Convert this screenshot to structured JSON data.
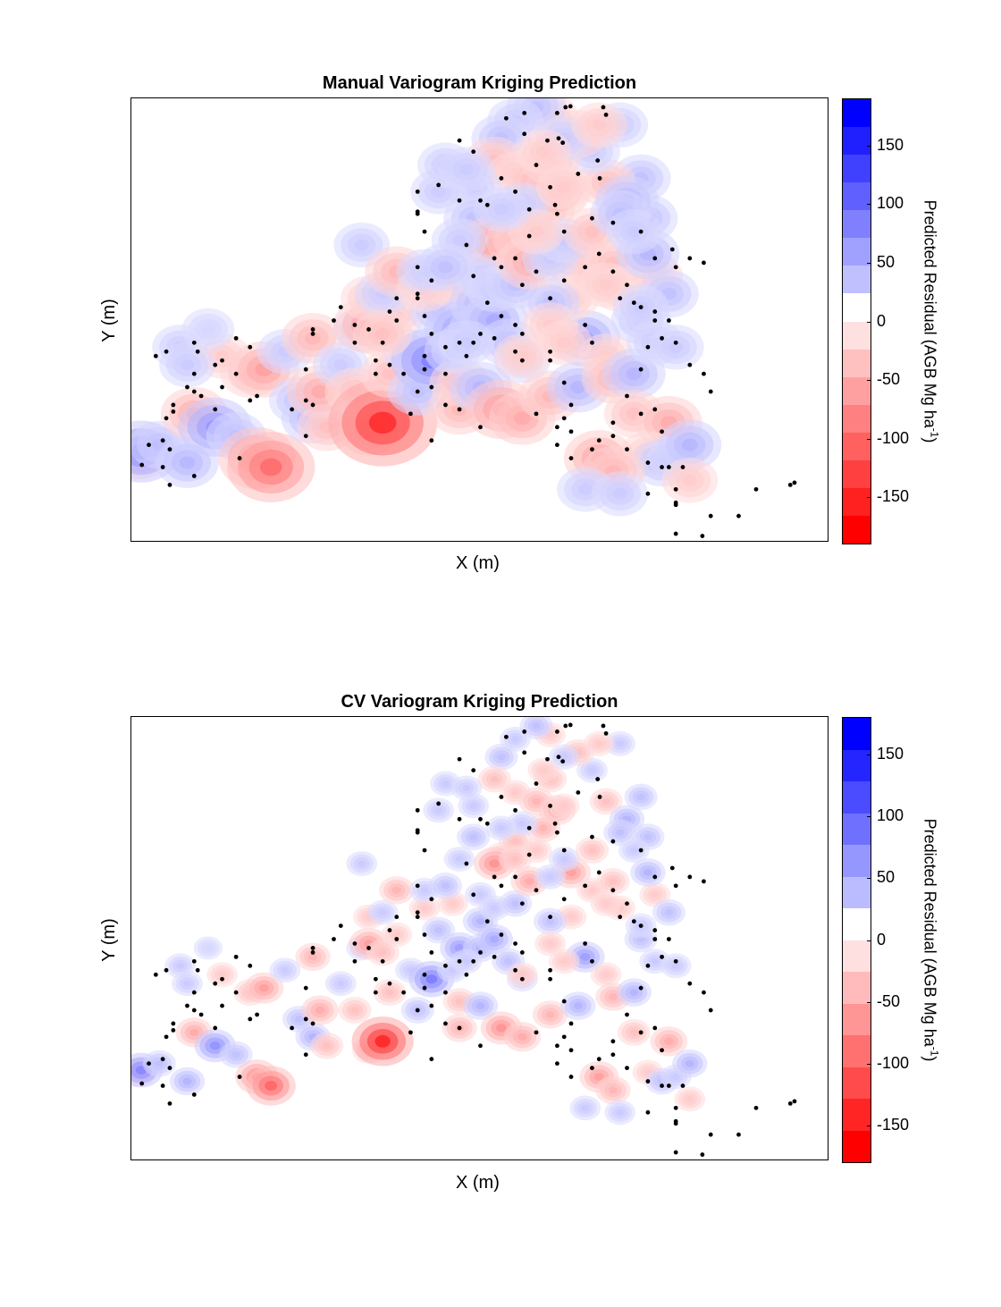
{
  "chart_data": [
    {
      "type": "heatmap",
      "title": "Manual Variogram Kriging Prediction",
      "xlabel": "X (m)",
      "ylabel": "Y (m)",
      "colorbar": {
        "label_main": "Predicted Residual (AGB Mg ha",
        "label_sup": "-1",
        "label_end": ")",
        "range": [
          -190,
          190
        ],
        "ticks": [
          150,
          100,
          50,
          0,
          -50,
          -100,
          -150
        ],
        "tick_labels": [
          "150",
          "100",
          "50",
          "0",
          "-50",
          "-100",
          "-150"
        ],
        "levels": 16,
        "positive_color": "#0000ff",
        "negative_color": "#ff0000",
        "zero_color": "#ffffff"
      },
      "blob_scale": 1.0
    },
    {
      "type": "heatmap",
      "title": "CV Variogram Kriging Prediction",
      "xlabel": "X (m)",
      "ylabel": "Y (m)",
      "colorbar": {
        "label_main": "Predicted Residual (AGB Mg ha",
        "label_sup": "-1",
        "label_end": ")",
        "range": [
          -180,
          180
        ],
        "ticks": [
          150,
          100,
          50,
          0,
          -50,
          -100,
          -150
        ],
        "tick_labels": [
          "150",
          "100",
          "50",
          "0",
          "-50",
          "-100",
          "-150"
        ],
        "levels": 14,
        "positive_color": "#0000ff",
        "negative_color": "#ff0000",
        "zero_color": "#ffffff"
      },
      "blob_scale": 0.55
    }
  ],
  "field_points": [
    [
      0.01,
      0.8,
      -40
    ],
    [
      0.014,
      0.795,
      80
    ],
    [
      0.04,
      0.78,
      30
    ],
    [
      0.08,
      0.82,
      40
    ],
    [
      0.09,
      0.71,
      -50
    ],
    [
      0.07,
      0.56,
      20
    ],
    [
      0.12,
      0.74,
      70
    ],
    [
      0.15,
      0.76,
      30
    ],
    [
      0.18,
      0.81,
      -80
    ],
    [
      0.2,
      0.83,
      -110
    ],
    [
      0.17,
      0.62,
      -30
    ],
    [
      0.13,
      0.58,
      -20
    ],
    [
      0.19,
      0.61,
      -60
    ],
    [
      0.22,
      0.57,
      20
    ],
    [
      0.24,
      0.68,
      30
    ],
    [
      0.26,
      0.72,
      40
    ],
    [
      0.28,
      0.74,
      -30
    ],
    [
      0.26,
      0.54,
      -40
    ],
    [
      0.27,
      0.66,
      -50
    ],
    [
      0.3,
      0.6,
      20
    ],
    [
      0.32,
      0.66,
      -30
    ],
    [
      0.33,
      0.52,
      20
    ],
    [
      0.34,
      0.75,
      -30
    ],
    [
      0.36,
      0.73,
      -170
    ],
    [
      0.34,
      0.51,
      -60
    ],
    [
      0.37,
      0.62,
      -30
    ],
    [
      0.34,
      0.45,
      -20
    ],
    [
      0.38,
      0.49,
      -20
    ],
    [
      0.4,
      0.57,
      20
    ],
    [
      0.41,
      0.66,
      30
    ],
    [
      0.43,
      0.59,
      90
    ],
    [
      0.44,
      0.48,
      30
    ],
    [
      0.46,
      0.42,
      -20
    ],
    [
      0.47,
      0.52,
      60
    ],
    [
      0.5,
      0.46,
      40
    ],
    [
      0.5,
      0.52,
      40
    ],
    [
      0.52,
      0.5,
      50
    ],
    [
      0.54,
      0.55,
      30
    ],
    [
      0.56,
      0.59,
      20
    ],
    [
      0.47,
      0.7,
      -40
    ],
    [
      0.47,
      0.64,
      -30
    ],
    [
      0.5,
      0.65,
      40
    ],
    [
      0.53,
      0.7,
      -70
    ],
    [
      0.56,
      0.72,
      -50
    ],
    [
      0.56,
      0.58,
      -20
    ],
    [
      0.6,
      0.67,
      -40
    ],
    [
      0.64,
      0.65,
      40
    ],
    [
      0.65,
      0.54,
      60
    ],
    [
      0.68,
      0.58,
      -20
    ],
    [
      0.69,
      0.63,
      -40
    ],
    [
      0.72,
      0.62,
      40
    ],
    [
      0.72,
      0.71,
      -30
    ],
    [
      0.77,
      0.73,
      -50
    ],
    [
      0.74,
      0.8,
      -20
    ],
    [
      0.76,
      0.82,
      30
    ],
    [
      0.78,
      0.81,
      20
    ],
    [
      0.8,
      0.78,
      40
    ],
    [
      0.8,
      0.86,
      -20
    ],
    [
      0.67,
      0.81,
      -60
    ],
    [
      0.69,
      0.84,
      -40
    ],
    [
      0.65,
      0.88,
      20
    ],
    [
      0.7,
      0.89,
      20
    ],
    [
      0.63,
      0.35,
      -60
    ],
    [
      0.63,
      0.45,
      -20
    ],
    [
      0.6,
      0.46,
      30
    ],
    [
      0.66,
      0.39,
      -20
    ],
    [
      0.69,
      0.37,
      -30
    ],
    [
      0.73,
      0.5,
      30
    ],
    [
      0.75,
      0.55,
      20
    ],
    [
      0.7,
      0.43,
      -20
    ],
    [
      0.75,
      0.4,
      -20
    ],
    [
      0.78,
      0.56,
      20
    ],
    [
      0.77,
      0.44,
      30
    ],
    [
      0.74,
      0.35,
      40
    ],
    [
      0.74,
      0.27,
      30
    ],
    [
      0.73,
      0.18,
      30
    ],
    [
      0.68,
      0.19,
      -30
    ],
    [
      0.71,
      0.23,
      40
    ],
    [
      0.66,
      0.12,
      20
    ],
    [
      0.64,
      0.08,
      -30
    ],
    [
      0.6,
      0.04,
      -20
    ],
    [
      0.58,
      0.02,
      30
    ],
    [
      0.55,
      0.05,
      20
    ],
    [
      0.53,
      0.09,
      30
    ],
    [
      0.52,
      0.14,
      -30
    ],
    [
      0.55,
      0.17,
      -20
    ],
    [
      0.58,
      0.19,
      -40
    ],
    [
      0.59,
      0.25,
      -40
    ],
    [
      0.61,
      0.21,
      -50
    ],
    [
      0.6,
      0.14,
      -30
    ],
    [
      0.62,
      0.09,
      20
    ],
    [
      0.53,
      0.31,
      -20
    ],
    [
      0.55,
      0.28,
      -30
    ],
    [
      0.49,
      0.2,
      20
    ],
    [
      0.49,
      0.27,
      30
    ],
    [
      0.52,
      0.33,
      -70
    ],
    [
      0.55,
      0.32,
      -30
    ],
    [
      0.47,
      0.32,
      20
    ],
    [
      0.44,
      0.21,
      20
    ],
    [
      0.45,
      0.15,
      20
    ],
    [
      0.48,
      0.16,
      20
    ],
    [
      0.5,
      0.4,
      20
    ],
    [
      0.52,
      0.43,
      20
    ],
    [
      0.55,
      0.42,
      30
    ],
    [
      0.57,
      0.37,
      -50
    ],
    [
      0.6,
      0.36,
      20
    ],
    [
      0.62,
      0.32,
      20
    ],
    [
      0.66,
      0.3,
      -30
    ],
    [
      0.7,
      0.26,
      30
    ],
    [
      0.72,
      0.3,
      20
    ],
    [
      0.7,
      0.06,
      20
    ],
    [
      0.67,
      0.06,
      -20
    ],
    [
      0.33,
      0.33,
      20
    ],
    [
      0.36,
      0.44,
      20
    ],
    [
      0.38,
      0.39,
      -40
    ],
    [
      0.42,
      0.43,
      -20
    ],
    [
      0.42,
      0.39,
      20
    ],
    [
      0.45,
      0.38,
      30
    ],
    [
      0.36,
      0.53,
      -30
    ],
    [
      0.6,
      0.51,
      -20
    ],
    [
      0.62,
      0.55,
      -20
    ],
    [
      0.68,
      0.42,
      -20
    ],
    [
      0.73,
      0.47,
      20
    ],
    [
      0.08,
      0.6,
      20
    ],
    [
      0.11,
      0.52,
      10
    ],
    [
      0.56,
      0.24,
      20
    ],
    [
      0.58,
      0.3,
      -20
    ],
    [
      0.46,
      0.57,
      20
    ],
    [
      0.48,
      0.55,
      20
    ],
    [
      0.62,
      0.2,
      -20
    ],
    [
      0.59,
      0.12,
      -20
    ],
    [
      0.53,
      0.25,
      20
    ]
  ],
  "site_points": [
    [
      0.537,
      0.045
    ],
    [
      0.563,
      0.033
    ],
    [
      0.563,
      0.08
    ],
    [
      0.61,
      0.033
    ],
    [
      0.622,
      0.02
    ],
    [
      0.629,
      0.018
    ],
    [
      0.676,
      0.02
    ],
    [
      0.68,
      0.037
    ],
    [
      0.47,
      0.095
    ],
    [
      0.49,
      0.12
    ],
    [
      0.596,
      0.095
    ],
    [
      0.618,
      0.1
    ],
    [
      0.612,
      0.09
    ],
    [
      0.668,
      0.14
    ],
    [
      0.671,
      0.18
    ],
    [
      0.58,
      0.15
    ],
    [
      0.607,
      0.24
    ],
    [
      0.64,
      0.17
    ],
    [
      0.6,
      0.2
    ],
    [
      0.41,
      0.21
    ],
    [
      0.44,
      0.195
    ],
    [
      0.47,
      0.23
    ],
    [
      0.5,
      0.23
    ],
    [
      0.51,
      0.24
    ],
    [
      0.53,
      0.18
    ],
    [
      0.55,
      0.21
    ],
    [
      0.57,
      0.25
    ],
    [
      0.61,
      0.26
    ],
    [
      0.62,
      0.3
    ],
    [
      0.66,
      0.27
    ],
    [
      0.69,
      0.28
    ],
    [
      0.67,
      0.35
    ],
    [
      0.73,
      0.3
    ],
    [
      0.75,
      0.36
    ],
    [
      0.775,
      0.34
    ],
    [
      0.8,
      0.36
    ],
    [
      0.82,
      0.37
    ],
    [
      0.78,
      0.38
    ],
    [
      0.7,
      0.45
    ],
    [
      0.72,
      0.46
    ],
    [
      0.75,
      0.48
    ],
    [
      0.77,
      0.5
    ],
    [
      0.76,
      0.54
    ],
    [
      0.74,
      0.56
    ],
    [
      0.66,
      0.55
    ],
    [
      0.65,
      0.51
    ],
    [
      0.41,
      0.255
    ],
    [
      0.41,
      0.26
    ],
    [
      0.42,
      0.3
    ],
    [
      0.48,
      0.33
    ],
    [
      0.52,
      0.36
    ],
    [
      0.53,
      0.38
    ],
    [
      0.55,
      0.36
    ],
    [
      0.58,
      0.39
    ],
    [
      0.6,
      0.45
    ],
    [
      0.62,
      0.41
    ],
    [
      0.65,
      0.38
    ],
    [
      0.69,
      0.39
    ],
    [
      0.71,
      0.42
    ],
    [
      0.73,
      0.47
    ],
    [
      0.75,
      0.5
    ],
    [
      0.78,
      0.55
    ],
    [
      0.8,
      0.6
    ],
    [
      0.82,
      0.62
    ],
    [
      0.83,
      0.66
    ],
    [
      0.73,
      0.61
    ],
    [
      0.71,
      0.67
    ],
    [
      0.69,
      0.73
    ],
    [
      0.63,
      0.69
    ],
    [
      0.62,
      0.64
    ],
    [
      0.6,
      0.57
    ],
    [
      0.61,
      0.74
    ],
    [
      0.6,
      0.59
    ],
    [
      0.56,
      0.59
    ],
    [
      0.55,
      0.57
    ],
    [
      0.56,
      0.53
    ],
    [
      0.55,
      0.51
    ],
    [
      0.53,
      0.49
    ],
    [
      0.51,
      0.46
    ],
    [
      0.5,
      0.53
    ],
    [
      0.49,
      0.55
    ],
    [
      0.48,
      0.58
    ],
    [
      0.47,
      0.55
    ],
    [
      0.45,
      0.56
    ],
    [
      0.43,
      0.53
    ],
    [
      0.42,
      0.58
    ],
    [
      0.41,
      0.66
    ],
    [
      0.45,
      0.69
    ],
    [
      0.45,
      0.62
    ],
    [
      0.42,
      0.49
    ],
    [
      0.41,
      0.45
    ],
    [
      0.41,
      0.44
    ],
    [
      0.38,
      0.45
    ],
    [
      0.41,
      0.38
    ],
    [
      0.43,
      0.41
    ],
    [
      0.42,
      0.61
    ],
    [
      0.43,
      0.65
    ],
    [
      0.37,
      0.48
    ],
    [
      0.38,
      0.5
    ],
    [
      0.36,
      0.55
    ],
    [
      0.37,
      0.6
    ],
    [
      0.39,
      0.62
    ],
    [
      0.35,
      0.59
    ],
    [
      0.34,
      0.52
    ],
    [
      0.32,
      0.51
    ],
    [
      0.3,
      0.47
    ],
    [
      0.29,
      0.5
    ],
    [
      0.26,
      0.53
    ],
    [
      0.26,
      0.69
    ],
    [
      0.25,
      0.61
    ],
    [
      0.25,
      0.68
    ],
    [
      0.18,
      0.67
    ],
    [
      0.15,
      0.62
    ],
    [
      0.17,
      0.68
    ],
    [
      0.17,
      0.56
    ],
    [
      0.15,
      0.54
    ],
    [
      0.13,
      0.59
    ],
    [
      0.12,
      0.6
    ],
    [
      0.13,
      0.65
    ],
    [
      0.1,
      0.67
    ],
    [
      0.12,
      0.7
    ],
    [
      0.09,
      0.55
    ],
    [
      0.095,
      0.57
    ],
    [
      0.09,
      0.62
    ],
    [
      0.08,
      0.65
    ],
    [
      0.09,
      0.66
    ],
    [
      0.06,
      0.69
    ],
    [
      0.05,
      0.72
    ],
    [
      0.045,
      0.77
    ],
    [
      0.055,
      0.79
    ],
    [
      0.025,
      0.78
    ],
    [
      0.015,
      0.825
    ],
    [
      0.045,
      0.83
    ],
    [
      0.09,
      0.85
    ],
    [
      0.055,
      0.87
    ],
    [
      0.035,
      0.58
    ],
    [
      0.05,
      0.57
    ],
    [
      0.06,
      0.705
    ],
    [
      0.155,
      0.81
    ],
    [
      0.25,
      0.76
    ],
    [
      0.23,
      0.7
    ],
    [
      0.26,
      0.52
    ],
    [
      0.32,
      0.55
    ],
    [
      0.35,
      0.62
    ],
    [
      0.4,
      0.71
    ],
    [
      0.43,
      0.77
    ],
    [
      0.47,
      0.7
    ],
    [
      0.5,
      0.74
    ],
    [
      0.58,
      0.71
    ],
    [
      0.62,
      0.72
    ],
    [
      0.61,
      0.78
    ],
    [
      0.63,
      0.75
    ],
    [
      0.66,
      0.79
    ],
    [
      0.69,
      0.76
    ],
    [
      0.71,
      0.79
    ],
    [
      0.74,
      0.82
    ],
    [
      0.76,
      0.83
    ],
    [
      0.77,
      0.83
    ],
    [
      0.74,
      0.89
    ],
    [
      0.79,
      0.83
    ],
    [
      0.78,
      0.88
    ],
    [
      0.78,
      0.91
    ],
    [
      0.78,
      0.915
    ],
    [
      0.83,
      0.94
    ],
    [
      0.87,
      0.94
    ],
    [
      0.78,
      0.98
    ],
    [
      0.818,
      0.985
    ],
    [
      0.895,
      0.88
    ],
    [
      0.944,
      0.87
    ],
    [
      0.95,
      0.865
    ],
    [
      0.76,
      0.75
    ],
    [
      0.75,
      0.7
    ],
    [
      0.73,
      0.71
    ],
    [
      0.67,
      0.77
    ],
    [
      0.63,
      0.81
    ],
    [
      0.56,
      0.42
    ],
    [
      0.52,
      0.54
    ],
    [
      0.49,
      0.4
    ],
    [
      0.57,
      0.31
    ]
  ]
}
